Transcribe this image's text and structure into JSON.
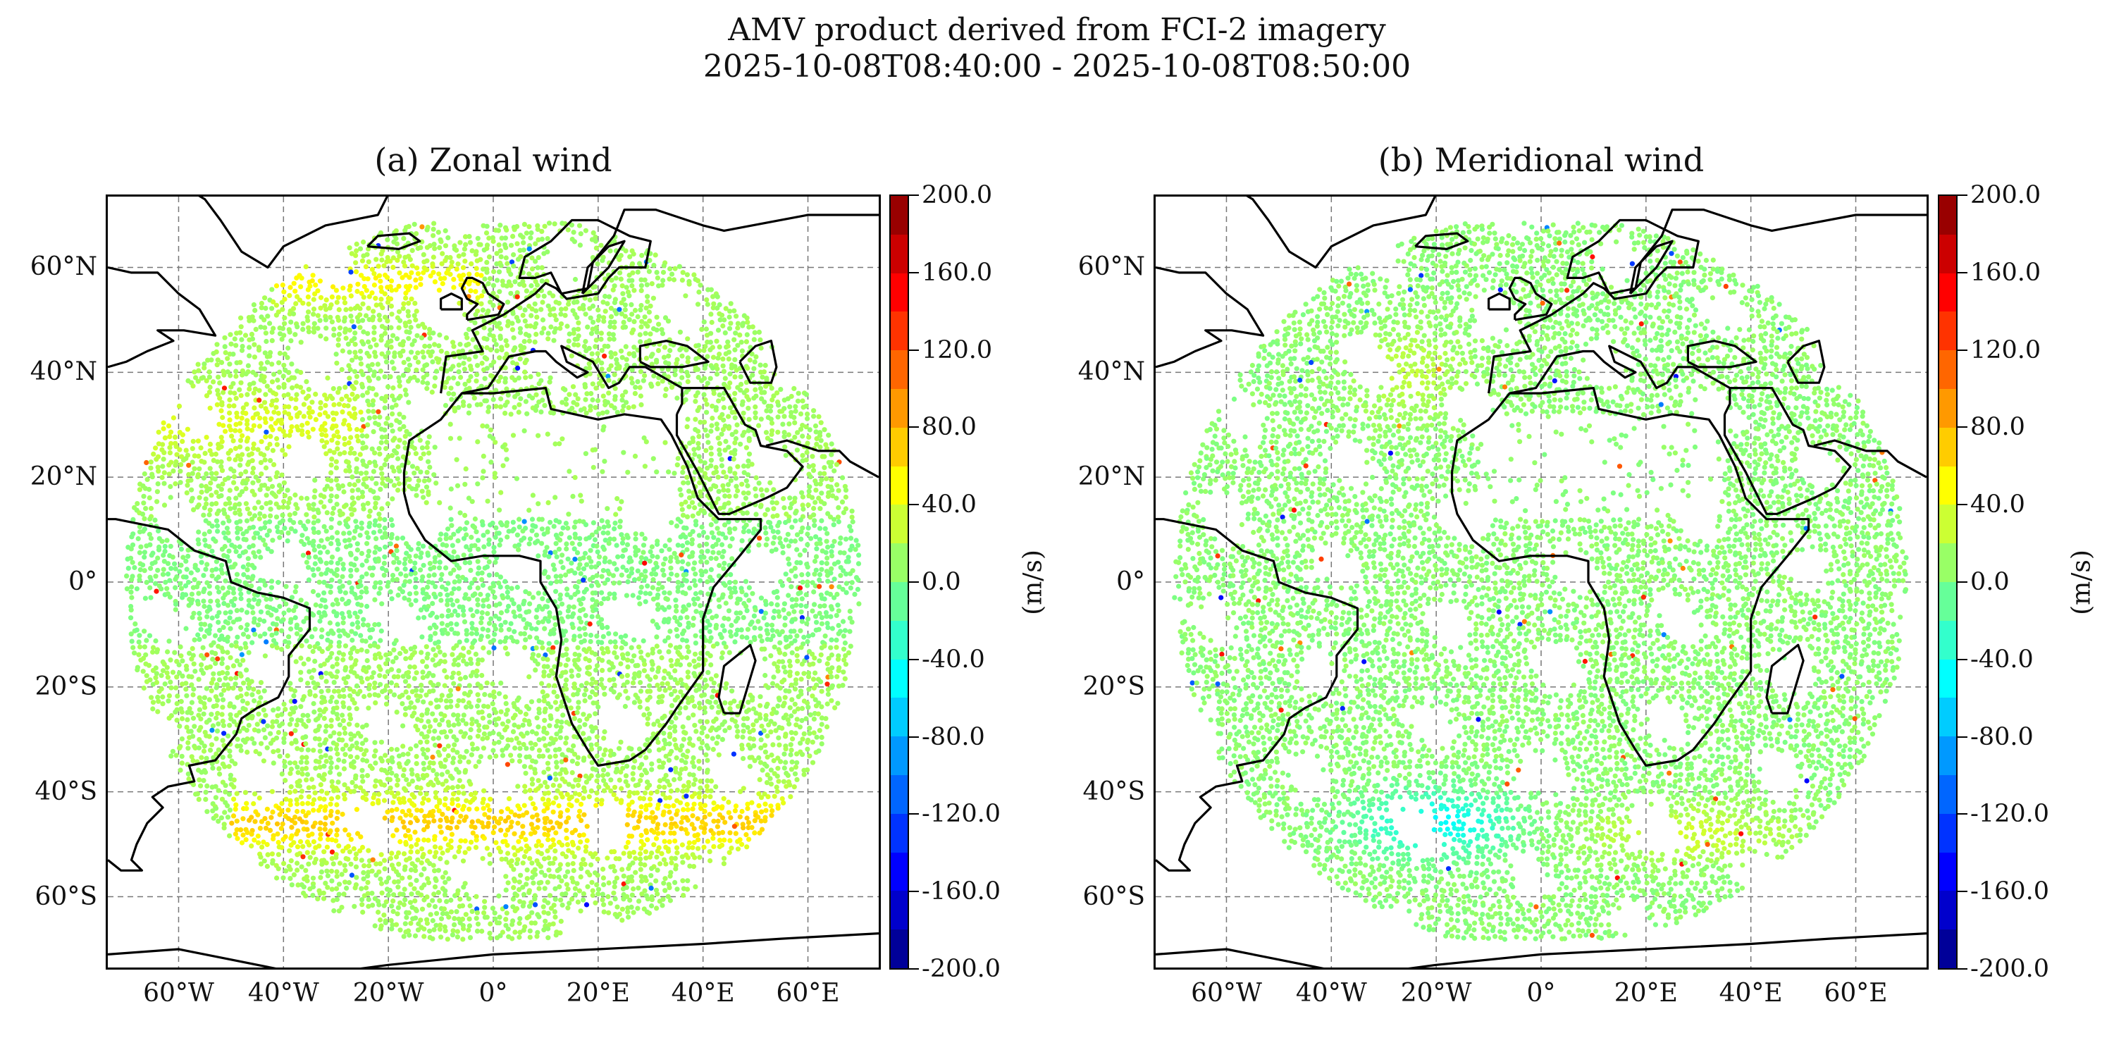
{
  "suptitle": [
    "AMV product derived from FCI-2 imagery",
    "2025-10-08T08:40:00 - 2025-10-08T08:50:00"
  ],
  "chart_data": [
    {
      "type": "scatter",
      "title": "(a) Zonal wind",
      "variable": "zonal",
      "xlabel": "",
      "ylabel": "",
      "x_ticks": [
        "60°W",
        "40°W",
        "20°W",
        "0°",
        "20°E",
        "40°E",
        "60°E"
      ],
      "x_tick_values": [
        -60,
        -40,
        -20,
        0,
        20,
        40,
        60
      ],
      "y_ticks": [
        "60°N",
        "40°N",
        "20°N",
        "0°",
        "20°S",
        "40°S",
        "60°S"
      ],
      "y_tick_values": [
        60,
        40,
        20,
        0,
        -20,
        -40,
        -60
      ],
      "xlim": [
        -73.5,
        73.5
      ],
      "ylim": [
        -73.5,
        73.5
      ],
      "grid": true,
      "colorbar": {
        "label": "(m/s)",
        "min": -200,
        "max": 200,
        "ticks": [
          "200.0",
          "160.0",
          "120.0",
          "80.0",
          "40.0",
          "0.0",
          "-40.0",
          "-80.0",
          "-120.0",
          "-160.0",
          "-200.0"
        ],
        "tick_values": [
          200,
          160,
          120,
          80,
          40,
          0,
          -40,
          -80,
          -120,
          -160,
          -200
        ]
      },
      "features": [
        {
          "name": "southern-jet",
          "lon_range": [
            -48,
            55
          ],
          "lat_center": -45,
          "value": 60
        },
        {
          "name": "northern-jet",
          "lon_range": [
            -40,
            -5
          ],
          "lat_center": 57,
          "value": 50
        },
        {
          "name": "mid-atlantic-band",
          "lon_range": [
            -60,
            -30
          ],
          "lat_center": 30,
          "value": 45
        }
      ]
    },
    {
      "type": "scatter",
      "title": "(b) Meridional wind",
      "variable": "meridional",
      "xlabel": "",
      "ylabel": "",
      "x_ticks": [
        "60°W",
        "40°W",
        "20°W",
        "0°",
        "20°E",
        "40°E",
        "60°E"
      ],
      "x_tick_values": [
        -60,
        -40,
        -20,
        0,
        20,
        40,
        60
      ],
      "y_ticks": [
        "60°N",
        "40°N",
        "20°N",
        "0°",
        "20°S",
        "40°S",
        "60°S"
      ],
      "y_tick_values": [
        60,
        40,
        20,
        0,
        -20,
        -40,
        -60
      ],
      "xlim": [
        -73.5,
        73.5
      ],
      "ylim": [
        -73.5,
        73.5
      ],
      "grid": true,
      "colorbar": {
        "label": "(m/s)",
        "min": -200,
        "max": 200,
        "ticks": [
          "200.0",
          "160.0",
          "120.0",
          "80.0",
          "40.0",
          "0.0",
          "-40.0",
          "-80.0",
          "-120.0",
          "-160.0",
          "-200.0"
        ],
        "tick_values": [
          200,
          160,
          120,
          80,
          40,
          0,
          -40,
          -80,
          -120,
          -160,
          -200
        ]
      },
      "features": [
        {
          "name": "southwest-trough",
          "lon_range": [
            -35,
            -5
          ],
          "lat_center": -45,
          "value": -55
        },
        {
          "name": "southern-ridge",
          "lon_range": [
            5,
            50
          ],
          "lat_center": -46,
          "value": 35
        }
      ]
    }
  ]
}
